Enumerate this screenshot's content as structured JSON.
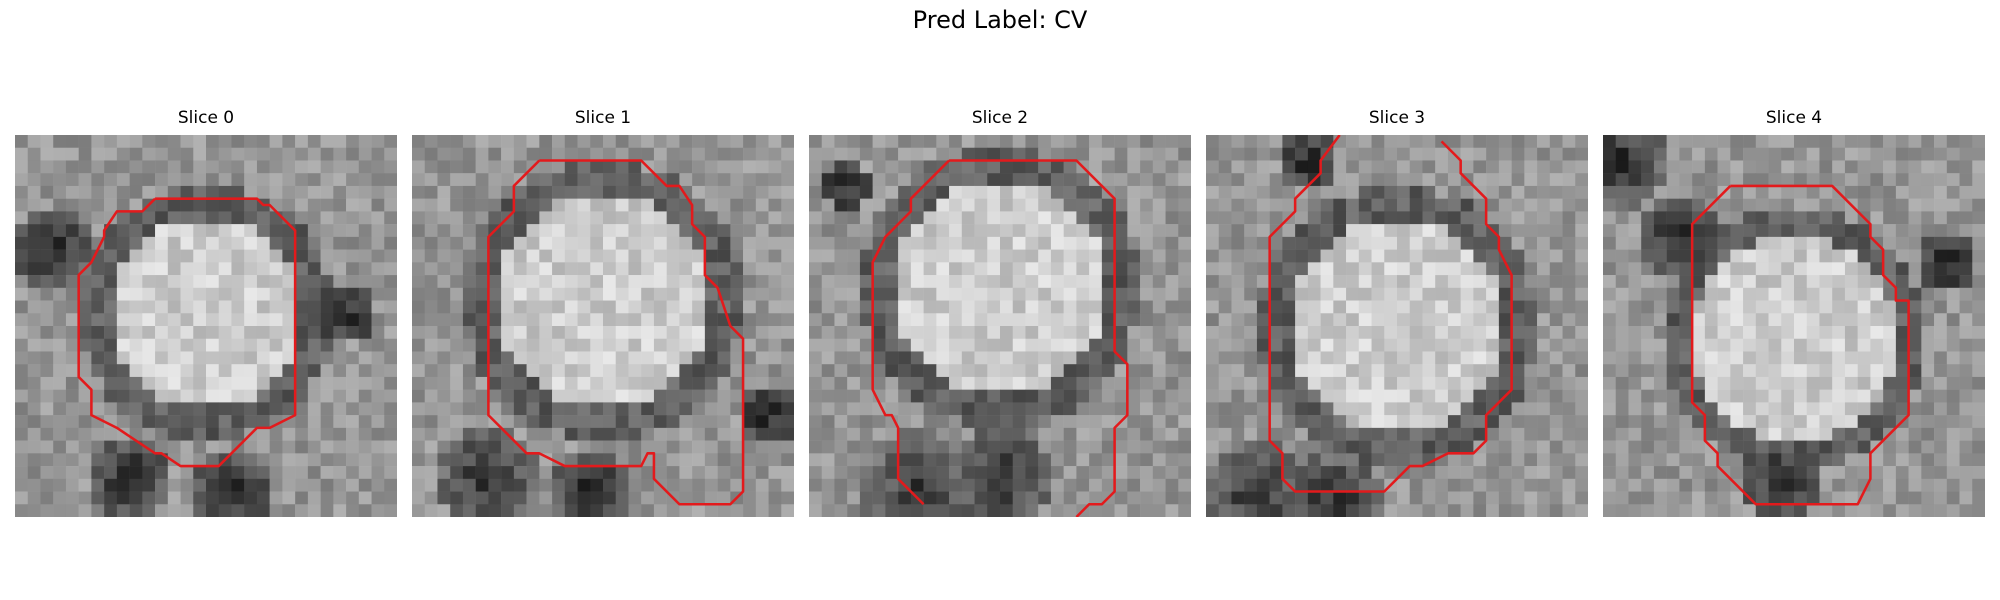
{
  "figure": {
    "title": "Pred Label: CV",
    "contour_color": "#e31a1c",
    "panels": [
      {
        "title": "Slice 0"
      },
      {
        "title": "Slice 1"
      },
      {
        "title": "Slice 2"
      },
      {
        "title": "Slice 3"
      },
      {
        "title": "Slice 4"
      }
    ]
  }
}
